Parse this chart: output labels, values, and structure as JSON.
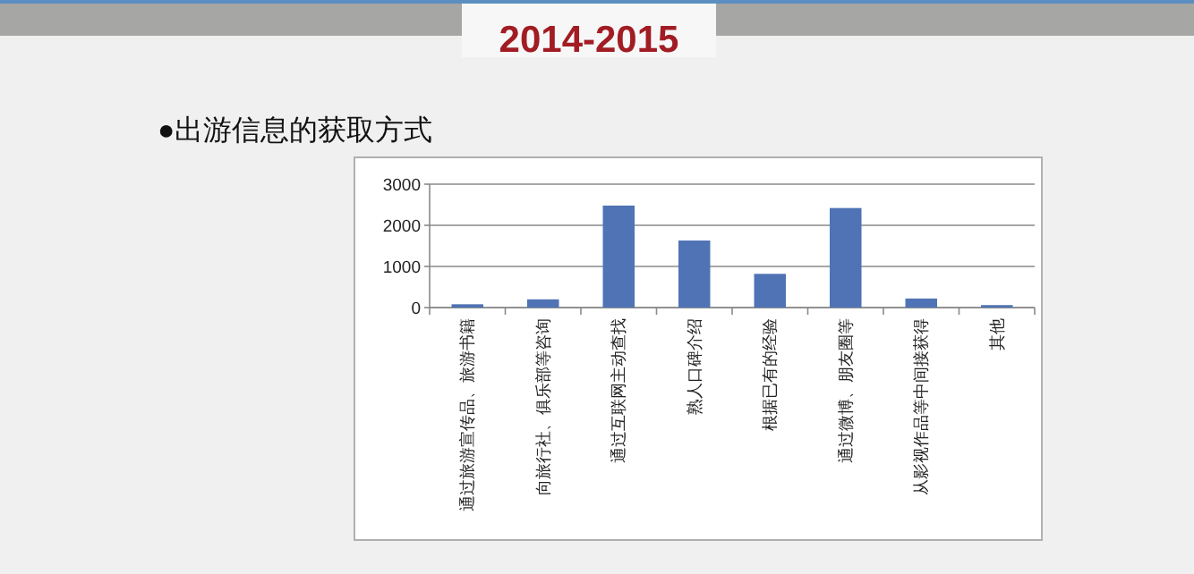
{
  "chart_data": {
    "type": "bar",
    "title": "2014-2015",
    "subtitle": "●出游信息的获取方式",
    "categories": [
      "通过旅游宣传品、旅游书籍",
      "向旅行社、俱乐部等咨询",
      "通过互联网主动查找",
      "熟人口碑介绍",
      "根据已有的经验",
      "通过微博、朋友圈等",
      "从影视作品等中间接获得",
      "其他"
    ],
    "values": [
      80,
      200,
      2480,
      1630,
      820,
      2420,
      220,
      60
    ],
    "color": "#4f73b4",
    "ylim": [
      0,
      3000
    ],
    "yticks": [
      0,
      1000,
      2000,
      3000
    ],
    "grid": "y"
  }
}
